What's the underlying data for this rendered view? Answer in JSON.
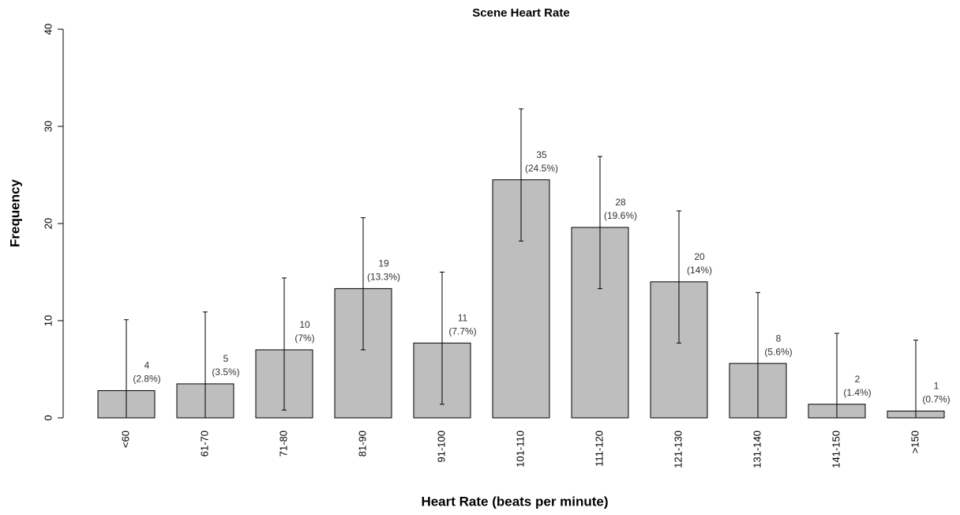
{
  "chart_data": {
    "type": "bar",
    "title": "Scene Heart Rate",
    "x_label": "Heart Rate (beats per minute)",
    "y_label": "Frequency",
    "categories": [
      "<60",
      "61-70",
      "71-80",
      "81-90",
      "91-100",
      "101-110",
      "111-120",
      "121-130",
      "131-140",
      "141-150",
      ">150"
    ],
    "values": [
      2.8,
      3.5,
      7,
      13.3,
      7.7,
      24.5,
      19.6,
      14,
      5.6,
      1.4,
      0.7
    ],
    "value_labels": [
      "(2.8%)",
      "(3.5%)",
      "(7%)",
      "(13.3%)",
      "(7.7%)",
      "(24.5%)",
      "(19.6%)",
      "(14%)",
      "(5.6%)",
      "(1.4%)",
      "(0.7%)"
    ],
    "counts": [
      4,
      5,
      10,
      19,
      11,
      35,
      28,
      20,
      8,
      2,
      1
    ],
    "error_upper": [
      10.1,
      10.9,
      14.4,
      20.6,
      15,
      31.8,
      26.9,
      21.3,
      12.9,
      8.7,
      8
    ],
    "error_lower": [
      0,
      0,
      0.8,
      7,
      1.4,
      18.2,
      13.3,
      7.7,
      0,
      0,
      0
    ],
    "color": "#bebebe",
    "ylim": [
      0,
      40
    ],
    "yticks": [
      0,
      10,
      20,
      30,
      40
    ]
  }
}
